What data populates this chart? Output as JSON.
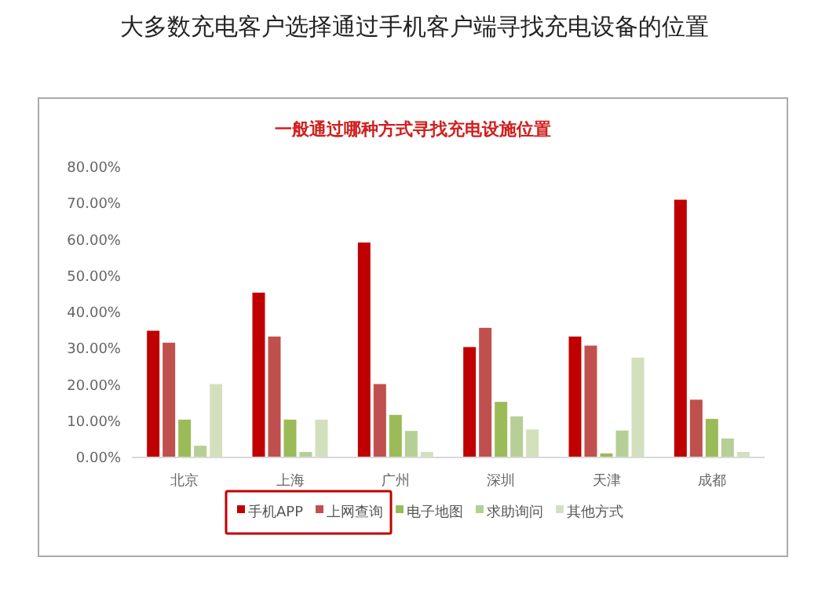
{
  "chart_data": {
    "type": "bar",
    "title": "大多数充电客户选择通过手机客户端寻找充电设备的位置",
    "subtitle": "一般通过哪种方式寻找充电设施位置",
    "categories": [
      "北京",
      "上海",
      "广州",
      "深圳",
      "天津",
      "成都"
    ],
    "series": [
      {
        "name": "手机APP",
        "color": "#c00000",
        "values": [
          34.7,
          45.2,
          59.0,
          30.2,
          33.1,
          70.8
        ]
      },
      {
        "name": "上网查询",
        "color": "#c0504d",
        "values": [
          31.4,
          33.1,
          20.0,
          35.5,
          30.6,
          15.7
        ]
      },
      {
        "name": "电子地图",
        "color": "#9bbb59",
        "values": [
          10.2,
          10.2,
          11.5,
          15.1,
          0.9,
          10.4
        ]
      },
      {
        "name": "求助询问",
        "color": "#b5cf96",
        "values": [
          3.0,
          1.3,
          7.1,
          11.1,
          7.2,
          5.0
        ]
      },
      {
        "name": "其他方式",
        "color": "#d3e0bd",
        "values": [
          20.0,
          10.2,
          1.3,
          7.5,
          27.3,
          1.3
        ]
      }
    ],
    "ylim": [
      0,
      80
    ],
    "yticks": [
      {
        "value": 0,
        "label": "0.00%"
      },
      {
        "value": 10,
        "label": "10.00%"
      },
      {
        "value": 20,
        "label": "20.00%"
      },
      {
        "value": 30,
        "label": "30.00%"
      },
      {
        "value": 40,
        "label": "40.00%"
      },
      {
        "value": 50,
        "label": "50.00%"
      },
      {
        "value": 60,
        "label": "60.00%"
      },
      {
        "value": 70,
        "label": "70.00%"
      },
      {
        "value": 80,
        "label": "80.00%"
      }
    ],
    "grid": false,
    "legend": "bottom"
  }
}
